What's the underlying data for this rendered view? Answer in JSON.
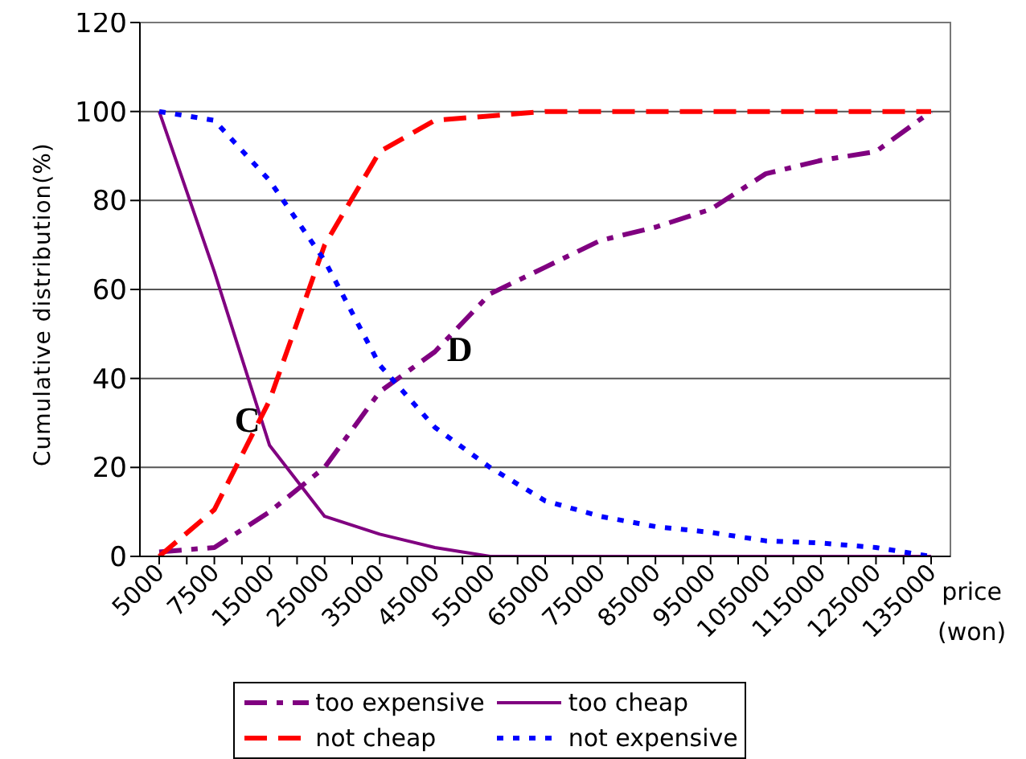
{
  "chart_data": {
    "type": "line",
    "ylabel": "Cumulative distribution(%)",
    "xlabel": "price\n(won)",
    "categories": [
      "5000",
      "7500",
      "15000",
      "25000",
      "35000",
      "45000",
      "55000",
      "65000",
      "75000",
      "85000",
      "95000",
      "105000",
      "115000",
      "125000",
      "135000"
    ],
    "series": [
      {
        "name": "too expensive",
        "color": "#800080",
        "line_style": "dashdot",
        "values": [
          1,
          2,
          10,
          20,
          37,
          46,
          59,
          65,
          71,
          74,
          78,
          86,
          89,
          91,
          100
        ]
      },
      {
        "name": "too cheap",
        "color": "#800080",
        "line_style": "solid",
        "values": [
          100,
          64,
          25,
          9,
          5,
          2,
          0,
          0,
          0,
          0,
          0,
          0,
          0,
          0,
          0
        ]
      },
      {
        "name": "not cheap",
        "color": "#ff0000",
        "line_style": "dashed",
        "values": [
          0,
          10.5,
          35,
          70,
          91,
          98,
          99,
          100,
          100,
          100,
          100,
          100,
          100,
          100,
          100
        ]
      },
      {
        "name": "not expensive",
        "color": "#0000ff",
        "line_style": "dotted",
        "values": [
          100,
          98,
          84.5,
          66.5,
          43,
          29,
          20,
          12.5,
          9,
          6.7,
          5.4,
          3.5,
          3,
          2,
          0
        ]
      }
    ],
    "ylim": [
      0,
      120
    ],
    "yticks": [
      0,
      20,
      40,
      60,
      80,
      100,
      120
    ],
    "grid": "y",
    "legend": "bottom",
    "marker": "none",
    "annotations": [
      "C",
      "D"
    ]
  }
}
